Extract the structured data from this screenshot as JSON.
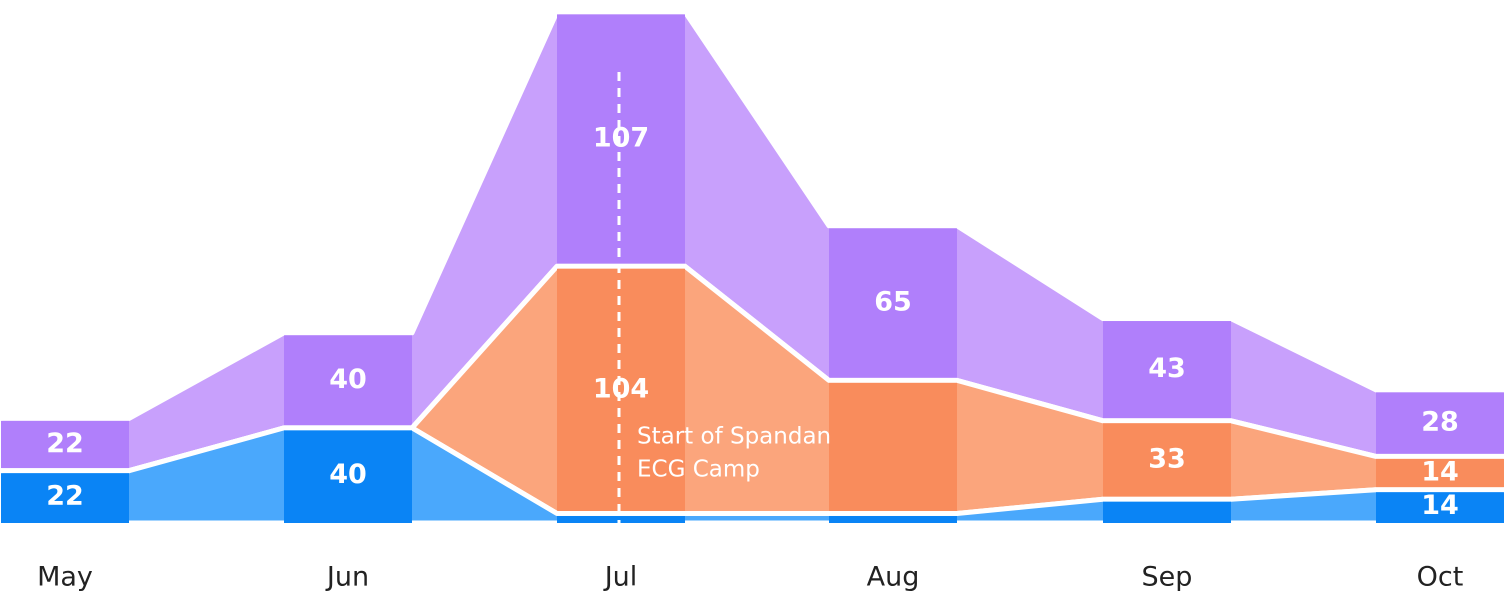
{
  "chart_data": {
    "type": "stacked-step-area",
    "categories": [
      "May",
      "Jun",
      "Jul",
      "Aug",
      "Sep",
      "Oct"
    ],
    "series": [
      {
        "color": "#0a84f5",
        "light_color": "#4aa8fc",
        "values": [
          22,
          40,
          4,
          4,
          10,
          14
        ],
        "value_labels": [
          "22",
          "40",
          null,
          null,
          null,
          "14"
        ]
      },
      {
        "color": "#f98c5c",
        "light_color": "#fba57c",
        "values": [
          0,
          0,
          104,
          56,
          33,
          14
        ],
        "value_labels": [
          null,
          null,
          "104",
          null,
          "33",
          "14"
        ]
      },
      {
        "color": "#b07ffb",
        "light_color": "#c8a0fc",
        "values": [
          22,
          40,
          107,
          65,
          43,
          28
        ],
        "value_labels": [
          "22",
          "40",
          "107",
          "65",
          "43",
          "28"
        ]
      }
    ],
    "ylim": [
      0,
      220
    ],
    "annotation": {
      "category": 2,
      "lines": [
        "Start of Spandan",
        "ECG Camp"
      ]
    }
  }
}
